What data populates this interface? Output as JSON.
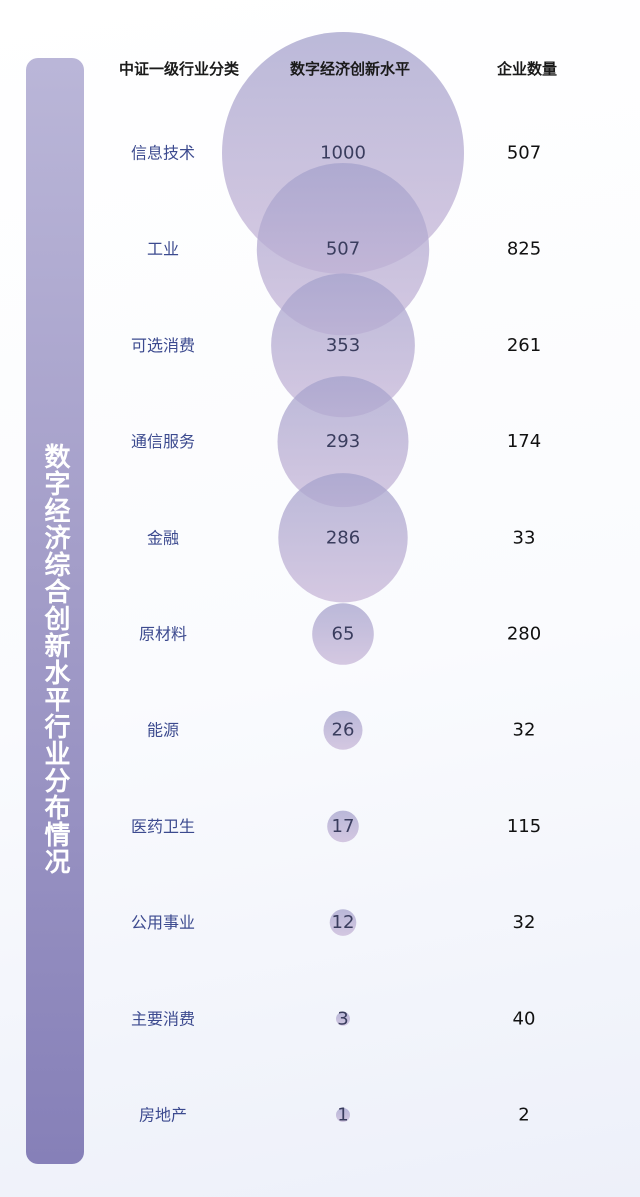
{
  "title": "数字经济综合创新水平行业分布情况",
  "headers": {
    "category": "中证一级行业分类",
    "innovation": "数字经济创新水平",
    "count": "企业数量"
  },
  "colors": {
    "bubble_top": "#a5a2cc",
    "bubble_bottom": "#c8b7d8",
    "category_text": "#3c4a8f",
    "sidebar": "#9d97c6"
  },
  "chart_data": {
    "type": "table",
    "columns": [
      "中证一级行业分类",
      "数字经济创新水平",
      "企业数量"
    ],
    "categories": [
      "信息技术",
      "工业",
      "可选消费",
      "通信服务",
      "金融",
      "原材料",
      "能源",
      "医药卫生",
      "公用事业",
      "主要消费",
      "房地产"
    ],
    "innovation_level": [
      1000,
      507,
      353,
      293,
      286,
      65,
      26,
      17,
      12,
      3,
      1
    ],
    "company_count": [
      507,
      825,
      261,
      174,
      33,
      280,
      32,
      115,
      32,
      40,
      2
    ]
  }
}
